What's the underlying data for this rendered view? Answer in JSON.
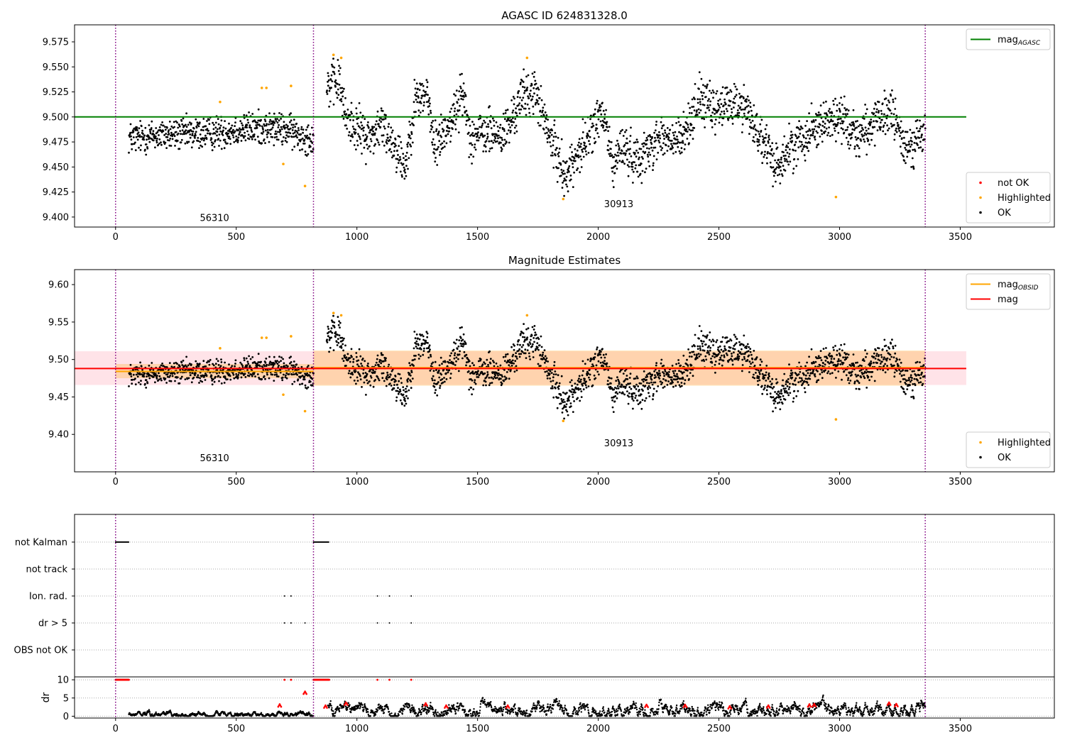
{
  "chart_data": [
    {
      "type": "scatter",
      "title": "AGASC ID 624831328.0",
      "xlim": [
        -170,
        3890
      ],
      "ylim": [
        9.39,
        9.592
      ],
      "xticks": [
        0,
        500,
        1000,
        1500,
        2000,
        2500,
        3000,
        3500
      ],
      "yticks": [
        9.4,
        9.425,
        9.45,
        9.475,
        9.5,
        9.525,
        9.55,
        9.575
      ],
      "ytick_decimals": 3,
      "obsid_boundaries": [
        0,
        820,
        3355
      ],
      "obsid_labels": [
        {
          "text": "56310",
          "x": 410,
          "y": 9.396
        },
        {
          "text": "30913",
          "x": 2085,
          "y": 9.41
        }
      ],
      "hlines": [
        {
          "name": "mag_AGASC",
          "value": 9.5,
          "color": "#008000",
          "x": [
            -170,
            3525
          ]
        }
      ],
      "legends": [
        {
          "position": "upper-right",
          "entries": [
            {
              "marker": "line",
              "color": "#008000",
              "label": "mag",
              "sub": "AGASC"
            }
          ]
        },
        {
          "position": "lower-right",
          "entries": [
            {
              "marker": "dot",
              "color": "#ff0000",
              "label": "not OK",
              "sub": ""
            },
            {
              "marker": "dot",
              "color": "#ffa500",
              "label": "Highlighted",
              "sub": ""
            },
            {
              "marker": "dot",
              "color": "#000000",
              "label": "OK",
              "sub": ""
            }
          ]
        }
      ],
      "highlighted": {
        "color": "#ffa500",
        "points": [
          [
            433,
            9.515
          ],
          [
            606,
            9.529
          ],
          [
            625,
            9.529
          ],
          [
            695,
            9.453
          ],
          [
            727,
            9.531
          ],
          [
            785,
            9.431
          ],
          [
            903,
            9.562
          ],
          [
            935,
            9.559
          ],
          [
            1705,
            9.559
          ],
          [
            1855,
            9.418
          ],
          [
            2985,
            9.42
          ]
        ]
      },
      "ok_series": {
        "color": "#000000",
        "segments": [
          {
            "x": [
              55,
              820
            ],
            "anchors": [
              [
                55,
                9.479
              ],
              [
                200,
                9.482
              ],
              [
                400,
                9.484
              ],
              [
                500,
                9.487
              ],
              [
                600,
                9.489
              ],
              [
                700,
                9.487
              ],
              [
                790,
                9.48
              ],
              [
                820,
                9.478
              ]
            ],
            "noise": 0.008
          },
          {
            "x": [
              875,
              3355
            ],
            "anchors": [
              [
                875,
                9.53
              ],
              [
                930,
                9.535
              ],
              [
                950,
                9.5
              ],
              [
                1050,
                9.478
              ],
              [
                1100,
                9.492
              ],
              [
                1150,
                9.475
              ],
              [
                1200,
                9.45
              ],
              [
                1240,
                9.515
              ],
              [
                1290,
                9.525
              ],
              [
                1320,
                9.47
              ],
              [
                1400,
                9.5
              ],
              [
                1440,
                9.525
              ],
              [
                1470,
                9.48
              ],
              [
                1550,
                9.485
              ],
              [
                1600,
                9.48
              ],
              [
                1640,
                9.495
              ],
              [
                1680,
                9.52
              ],
              [
                1740,
                9.525
              ],
              [
                1790,
                9.485
              ],
              [
                1830,
                9.462
              ],
              [
                1870,
                9.44
              ],
              [
                1900,
                9.458
              ],
              [
                1950,
                9.475
              ],
              [
                2000,
                9.5
              ],
              [
                2030,
                9.495
              ],
              [
                2060,
                9.45
              ],
              [
                2100,
                9.472
              ],
              [
                2150,
                9.458
              ],
              [
                2200,
                9.465
              ],
              [
                2250,
                9.48
              ],
              [
                2300,
                9.475
              ],
              [
                2350,
                9.478
              ],
              [
                2420,
                9.52
              ],
              [
                2480,
                9.505
              ],
              [
                2550,
                9.515
              ],
              [
                2620,
                9.508
              ],
              [
                2680,
                9.475
              ],
              [
                2740,
                9.45
              ],
              [
                2800,
                9.47
              ],
              [
                2850,
                9.48
              ],
              [
                2900,
                9.492
              ],
              [
                3000,
                9.5
              ],
              [
                3080,
                9.482
              ],
              [
                3120,
                9.49
              ],
              [
                3170,
                9.495
              ],
              [
                3210,
                9.508
              ],
              [
                3270,
                9.47
              ],
              [
                3355,
                9.482
              ]
            ],
            "noise": 0.011
          }
        ]
      }
    },
    {
      "type": "scatter",
      "title": "Magnitude Estimates",
      "xlim": [
        -170,
        3890
      ],
      "ylim": [
        9.35,
        9.62
      ],
      "xticks": [
        0,
        500,
        1000,
        1500,
        2000,
        2500,
        3000,
        3500
      ],
      "yticks": [
        9.4,
        9.45,
        9.5,
        9.55,
        9.6
      ],
      "ytick_decimals": 2,
      "obsid_boundaries": [
        0,
        820,
        3355
      ],
      "obsid_labels": [
        {
          "text": "56310",
          "x": 410,
          "y": 9.364
        },
        {
          "text": "30913",
          "x": 2085,
          "y": 9.384
        }
      ],
      "bands": [
        {
          "name": "mag range",
          "x": [
            -170,
            3525
          ],
          "y": [
            9.466,
            9.511
          ],
          "color": "#ffc0cb",
          "opacity": 0.45
        },
        {
          "name": "obsid 56310 range",
          "x": [
            0,
            820
          ],
          "y": [
            9.475,
            9.494
          ],
          "color": "#ffa500",
          "opacity": 0.25
        },
        {
          "name": "obsid 30913 range",
          "x": [
            820,
            3355
          ],
          "y": [
            9.465,
            9.512
          ],
          "color": "#ffa500",
          "opacity": 0.25
        }
      ],
      "hlines": [
        {
          "name": "mag_OBSID",
          "value": 9.484,
          "color": "#ffa500",
          "x": [
            0,
            820
          ]
        },
        {
          "name": "mag_OBSID",
          "value": 9.489,
          "color": "#ffa500",
          "x": [
            820,
            3355
          ]
        },
        {
          "name": "mag",
          "value": 9.488,
          "color": "#ff0000",
          "x": [
            -170,
            3525
          ]
        }
      ],
      "legends": [
        {
          "position": "upper-right",
          "entries": [
            {
              "marker": "line",
              "color": "#ffa500",
              "label": "mag",
              "sub": "OBSID"
            },
            {
              "marker": "line",
              "color": "#ff0000",
              "label": "mag",
              "sub": ""
            }
          ]
        },
        {
          "position": "lower-right",
          "entries": [
            {
              "marker": "dot",
              "color": "#ffa500",
              "label": "Highlighted",
              "sub": ""
            },
            {
              "marker": "dot",
              "color": "#000000",
              "label": "OK",
              "sub": ""
            }
          ]
        }
      ],
      "highlighted": {
        "color": "#ffa500",
        "points": [
          [
            433,
            9.515
          ],
          [
            606,
            9.529
          ],
          [
            625,
            9.529
          ],
          [
            695,
            9.453
          ],
          [
            727,
            9.531
          ],
          [
            785,
            9.431
          ],
          [
            903,
            9.562
          ],
          [
            935,
            9.559
          ],
          [
            1705,
            9.559
          ],
          [
            1855,
            9.418
          ],
          [
            2985,
            9.42
          ]
        ]
      },
      "ok_series": {
        "color": "#000000",
        "same_as_panel": 0
      }
    },
    {
      "type": "scatter",
      "title": "",
      "xlim": [
        -170,
        3890
      ],
      "xticks": [
        0,
        500,
        1000,
        1500,
        2000,
        2500,
        3000,
        3500
      ],
      "obsid_boundaries": [
        0,
        820,
        3355
      ],
      "flag_rows": [
        "not Kalman",
        "not track",
        "Ion. rad.",
        "dr > 5",
        "OBS not OK"
      ],
      "flags": {
        "not Kalman": {
          "ranges": [
            [
              0,
              55
            ],
            [
              820,
              885
            ]
          ]
        },
        "not track": {
          "ranges": []
        },
        "Ion. rad.": {
          "points": [
            700,
            727,
            1085,
            1135,
            1225
          ]
        },
        "dr > 5": {
          "points": [
            700,
            727,
            785,
            1085,
            1135,
            1225
          ]
        },
        "OBS not OK": {
          "points": []
        }
      },
      "dr_panel": {
        "ylabel": "dr",
        "ylim": [
          -0.5,
          10.6
        ],
        "yticks": [
          0,
          5,
          10
        ],
        "segments": [
          {
            "x": [
              55,
              820
            ],
            "base": 0.5,
            "noise": 0.35
          },
          {
            "x": [
              880,
              3355
            ],
            "base": 1.6,
            "noise": 0.9
          }
        ],
        "red_clipped": {
          "x_ranges": [
            [
              0,
              55
            ],
            [
              820,
              885
            ]
          ],
          "points": [
            700,
            727,
            1085,
            1135,
            1225
          ],
          "value": 10
        },
        "red_points": [
          [
            680,
            3.3
          ],
          [
            785,
            6.8
          ],
          [
            870,
            3.0
          ],
          [
            955,
            3.8
          ],
          [
            1285,
            3.6
          ],
          [
            1370,
            3.0
          ],
          [
            1625,
            3.0
          ],
          [
            2200,
            3.2
          ],
          [
            2360,
            3.2
          ],
          [
            2545,
            2.8
          ],
          [
            2705,
            3.0
          ],
          [
            2875,
            3.3
          ],
          [
            2895,
            3.4
          ],
          [
            3205,
            3.8
          ],
          [
            3235,
            3.4
          ]
        ]
      }
    }
  ]
}
